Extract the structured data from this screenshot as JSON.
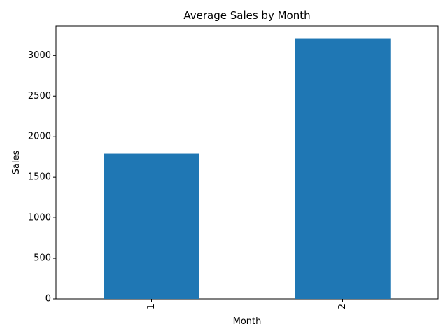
{
  "chart_data": {
    "type": "bar",
    "title": "Average Sales by Month",
    "xlabel": "Month",
    "ylabel": "Sales",
    "categories": [
      "1",
      "2"
    ],
    "values": [
      1790,
      3205
    ],
    "ylim": [
      0,
      3365
    ],
    "yticks": [
      0,
      500,
      1000,
      1500,
      2000,
      2500,
      3000
    ],
    "ytick_labels": [
      "0",
      "500",
      "1000",
      "1500",
      "2000",
      "2500",
      "3000"
    ],
    "xtick_rotation": "vertical",
    "grid": false,
    "legend": "none",
    "bar_color": "#1f77b4"
  }
}
